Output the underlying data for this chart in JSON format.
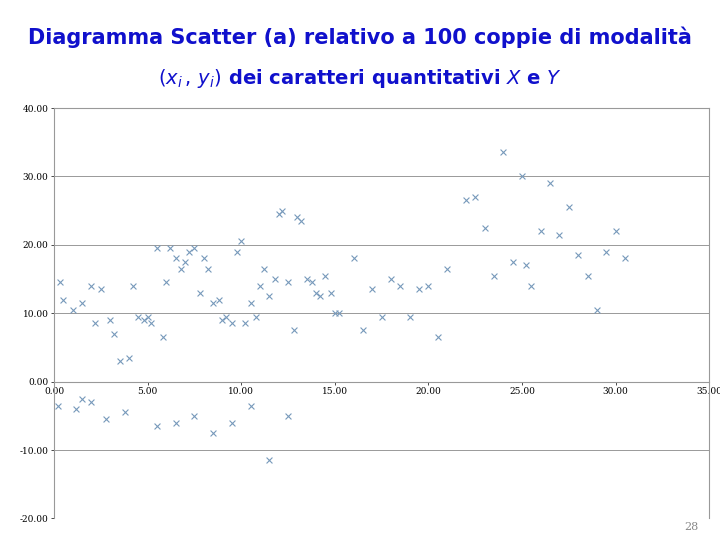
{
  "title_line1": "Diagramma Scatter (a) relativo a 100 coppie di modalità",
  "title_color": "#1010CC",
  "marker_color": "#7799BB",
  "marker_size": 18,
  "marker_linewidth": 0.8,
  "xlim": [
    0,
    35
  ],
  "ylim": [
    -20,
    40
  ],
  "xticks": [
    0,
    5,
    10,
    15,
    20,
    25,
    30,
    35
  ],
  "yticks": [
    -20,
    -10,
    0,
    10,
    20,
    30,
    40
  ],
  "grid_color": "#999999",
  "grid_linewidth": 0.7,
  "spine_color": "#999999",
  "background_color": "#FFFFFF",
  "page_number": "28",
  "x_data": [
    0.3,
    0.5,
    1.0,
    1.5,
    2.0,
    2.2,
    2.5,
    3.0,
    3.2,
    3.5,
    4.0,
    4.2,
    4.5,
    4.8,
    5.0,
    5.2,
    5.5,
    5.8,
    6.0,
    6.2,
    6.5,
    6.8,
    7.0,
    7.2,
    7.5,
    7.8,
    8.0,
    8.2,
    8.5,
    8.8,
    9.0,
    9.2,
    9.5,
    9.8,
    10.0,
    10.2,
    10.5,
    10.8,
    11.0,
    11.2,
    11.5,
    11.8,
    12.0,
    12.2,
    12.5,
    12.8,
    13.0,
    13.2,
    13.5,
    13.8,
    14.0,
    14.2,
    14.5,
    14.8,
    15.0,
    15.2,
    16.0,
    16.5,
    17.0,
    17.5,
    18.0,
    18.5,
    19.0,
    19.5,
    20.0,
    20.5,
    21.0,
    22.0,
    22.5,
    23.0,
    23.5,
    24.0,
    24.5,
    25.0,
    25.2,
    25.5,
    26.0,
    26.5,
    27.0,
    27.5,
    28.0,
    28.5,
    29.0,
    29.5,
    30.0,
    30.5,
    0.2,
    1.2,
    2.8,
    3.8,
    5.5,
    6.5,
    7.5,
    8.5,
    9.5,
    10.5,
    11.5,
    12.5,
    1.5,
    2.0
  ],
  "y_data": [
    14.5,
    12.0,
    10.5,
    11.5,
    14.0,
    8.5,
    13.5,
    9.0,
    7.0,
    3.0,
    3.5,
    14.0,
    9.5,
    9.0,
    9.5,
    8.5,
    19.5,
    6.5,
    14.5,
    19.5,
    18.0,
    16.5,
    17.5,
    19.0,
    19.5,
    13.0,
    18.0,
    16.5,
    11.5,
    12.0,
    9.0,
    9.5,
    8.5,
    19.0,
    20.5,
    8.5,
    11.5,
    9.5,
    14.0,
    16.5,
    12.5,
    15.0,
    24.5,
    25.0,
    14.5,
    7.5,
    24.0,
    23.5,
    15.0,
    14.5,
    13.0,
    12.5,
    15.5,
    13.0,
    10.0,
    10.0,
    18.0,
    7.5,
    13.5,
    9.5,
    15.0,
    14.0,
    9.5,
    13.5,
    14.0,
    6.5,
    16.5,
    26.5,
    27.0,
    22.5,
    15.5,
    33.5,
    17.5,
    30.0,
    17.0,
    14.0,
    22.0,
    29.0,
    21.5,
    25.5,
    18.5,
    15.5,
    10.5,
    19.0,
    22.0,
    18.0,
    -3.5,
    -4.0,
    -5.5,
    -4.5,
    -6.5,
    -6.0,
    -5.0,
    -7.5,
    -6.0,
    -3.5,
    -11.5,
    -5.0,
    -2.5,
    -3.0
  ]
}
